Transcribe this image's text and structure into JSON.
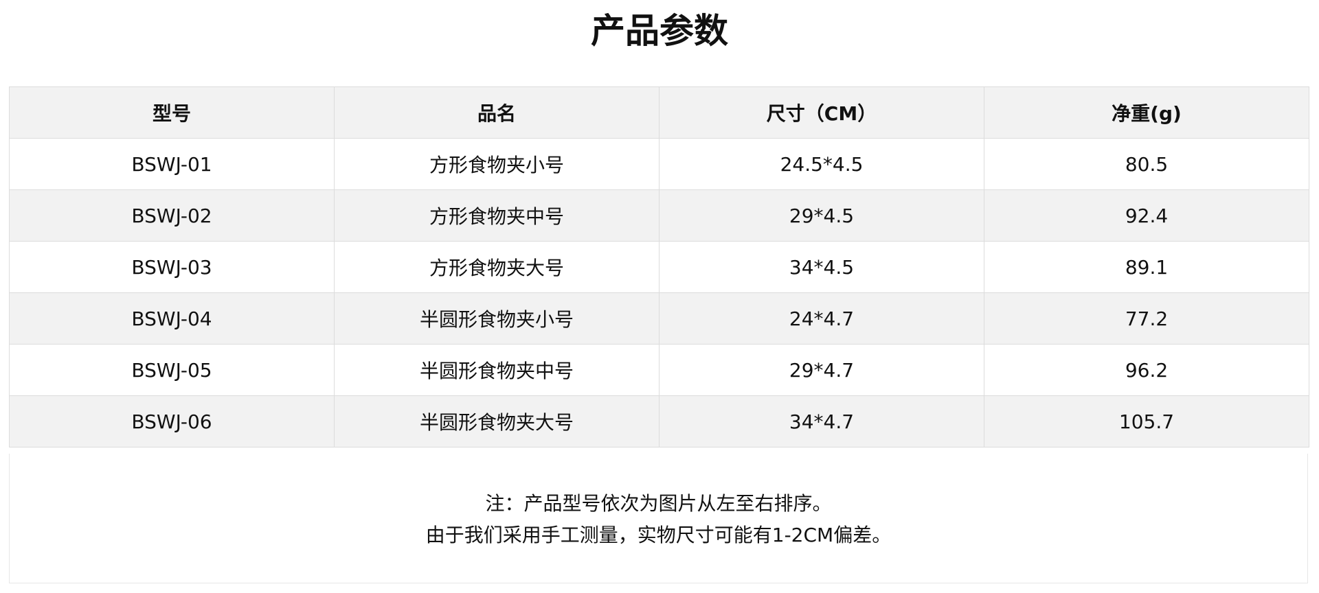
{
  "title": "产品参数",
  "table": {
    "headers": [
      "型号",
      "品名",
      "尺寸（CM）",
      "净重(g)"
    ],
    "rows": [
      [
        "BSWJ-01",
        "方形食物夹小号",
        "24.5*4.5",
        "80.5"
      ],
      [
        "BSWJ-02",
        "方形食物夹中号",
        "29*4.5",
        "92.4"
      ],
      [
        "BSWJ-03",
        "方形食物夹大号",
        "34*4.5",
        "89.1"
      ],
      [
        "BSWJ-04",
        "半圆形食物夹小号",
        "24*4.7",
        "77.2"
      ],
      [
        "BSWJ-05",
        "半圆形食物夹中号",
        "29*4.7",
        "96.2"
      ],
      [
        "BSWJ-06",
        "半圆形食物夹大号",
        "34*4.7",
        "105.7"
      ]
    ]
  },
  "notes": [
    "注：产品型号依次为图片从左至右排序。",
    "由于我们采用手工测量，实物尺寸可能有1-2CM偏差。"
  ],
  "colors": {
    "header_bg": "#f2f2f2",
    "alt_row_bg": "#f2f2f2",
    "border": "#dcdcdc"
  }
}
